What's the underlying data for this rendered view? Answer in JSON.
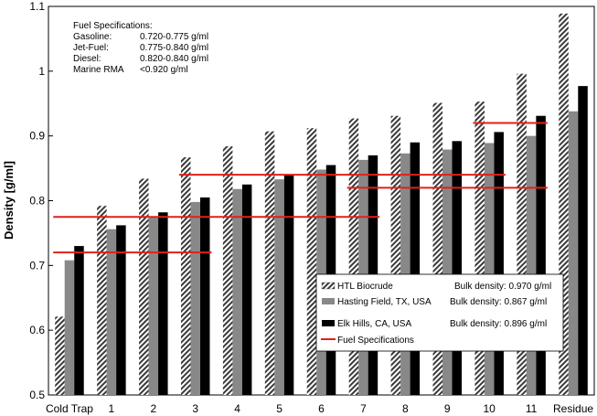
{
  "chart_data": {
    "type": "bar",
    "ylabel": "Density [g/ml]",
    "ylim": [
      0.5,
      1.1
    ],
    "yticks": [
      "0.5",
      "0.6",
      "0.7",
      "0.8",
      "0.9",
      "1",
      "1.1"
    ],
    "categories": [
      "Cold Trap",
      "1",
      "2",
      "3",
      "4",
      "5",
      "6",
      "7",
      "8",
      "9",
      "10",
      "11",
      "Residue"
    ],
    "series": [
      {
        "name": "HTL Biocrude",
        "bulk_density": "Bulk density: 0.970 g/ml",
        "values": [
          0.621,
          0.792,
          0.834,
          0.867,
          0.884,
          0.907,
          0.912,
          0.927,
          0.931,
          0.951,
          0.953,
          0.996,
          1.089
        ],
        "color": "#555555",
        "pattern": "hatched"
      },
      {
        "name": "Hasting Field, TX, USA",
        "bulk_density": "Bulk density: 0.867 g/ml",
        "values": [
          0.708,
          0.756,
          0.776,
          0.798,
          0.818,
          0.833,
          0.848,
          0.863,
          0.873,
          0.879,
          0.889,
          0.9,
          0.938
        ],
        "color": "#888888",
        "pattern": "solid"
      },
      {
        "name": "Elk Hills, CA, USA",
        "bulk_density": "Bulk density: 0.896 g/ml",
        "values": [
          0.73,
          0.762,
          0.782,
          0.805,
          0.825,
          0.84,
          0.855,
          0.87,
          0.89,
          0.892,
          0.906,
          0.931,
          0.977
        ],
        "color": "#000000",
        "pattern": "solid"
      }
    ],
    "fuel_spec_lines": [
      {
        "from": "Cold Trap",
        "to": "3",
        "y": 0.72
      },
      {
        "from": "Cold Trap",
        "to": "7",
        "y": 0.775
      },
      {
        "from": "3",
        "to": "10",
        "y": 0.84
      },
      {
        "from": "7",
        "to": "11",
        "y": 0.82
      },
      {
        "from": "10",
        "to": "11",
        "y": 0.92
      }
    ],
    "fuel_spec_color": "#e0201b",
    "spec_box": {
      "title": "Fuel Specifications:",
      "rows": [
        {
          "name": "Gasoline:",
          "value": "0.720-0.775 g/ml"
        },
        {
          "name": "Jet-Fuel:",
          "value": "0.775-0.840 g/ml"
        },
        {
          "name": "Diesel:",
          "value": "0.820-0.840 g/ml"
        },
        {
          "name": "Marine RMA",
          "value": "<0.920 g/ml"
        }
      ]
    },
    "legend_spec_label": "Fuel Specifications",
    "legend_placement": "bottom-right",
    "grid": false
  }
}
